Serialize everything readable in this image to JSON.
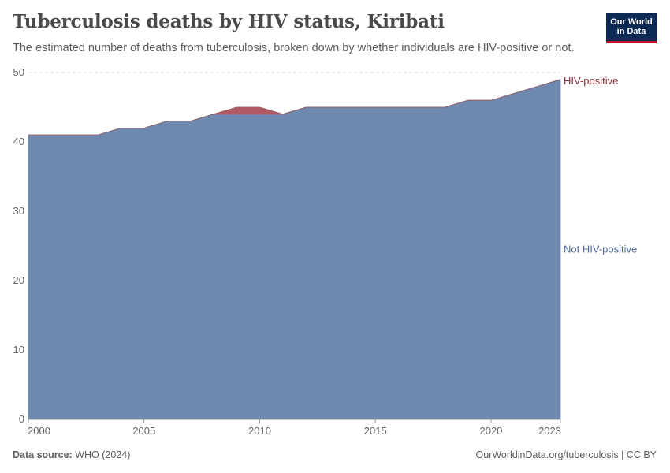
{
  "header": {
    "title": "Tuberculosis deaths by HIV status, Kiribati",
    "subtitle": "The estimated number of deaths from tuberculosis, broken down by whether individuals are HIV-positive or not."
  },
  "logo": {
    "line1": "Our World",
    "line2": "in Data"
  },
  "footer": {
    "source_label": "Data source:",
    "source_value": "WHO (2024)",
    "url": "OurWorldinData.org/tuberculosis | CC BY"
  },
  "chart_data": {
    "type": "area",
    "stacked": true,
    "x": [
      2000,
      2001,
      2002,
      2003,
      2004,
      2005,
      2006,
      2007,
      2008,
      2009,
      2010,
      2011,
      2012,
      2013,
      2014,
      2015,
      2016,
      2017,
      2018,
      2019,
      2020,
      2021,
      2022,
      2023
    ],
    "series": [
      {
        "name": "Not HIV-positive",
        "color": "#6f88b0",
        "values": [
          41,
          41,
          41,
          41,
          42,
          42,
          43,
          43,
          44,
          44,
          44,
          44,
          45,
          45,
          45,
          45,
          45,
          45,
          45,
          46,
          46,
          47,
          48,
          49
        ]
      },
      {
        "name": "HIV-positive",
        "color": "#b25a63",
        "values": [
          0,
          0,
          0,
          0,
          0,
          0,
          0,
          0,
          0,
          1,
          1,
          0,
          0,
          0,
          0,
          0,
          0,
          0,
          0,
          0,
          0,
          0,
          0,
          0
        ]
      }
    ],
    "x_ticks": [
      "2000",
      "2005",
      "2010",
      "2015",
      "2020",
      "2023"
    ],
    "y_ticks": [
      "0",
      "10",
      "20",
      "30",
      "40",
      "50"
    ],
    "xlim": [
      2000,
      2023
    ],
    "ylim": [
      0,
      50
    ],
    "grid": "horizontal-dashed",
    "legend": "right-inline"
  }
}
